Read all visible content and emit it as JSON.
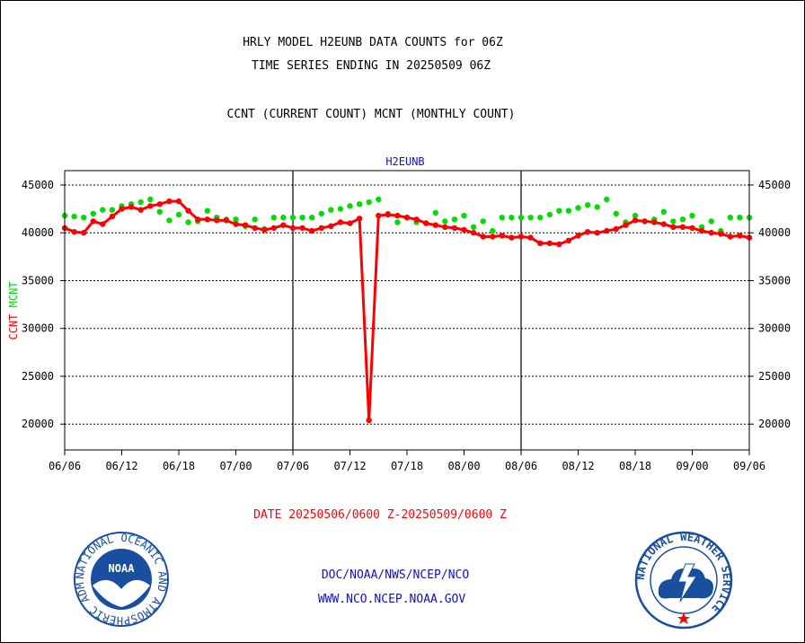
{
  "header": {
    "line1": "HRLY MODEL H2EUNB DATA COUNTS for 06Z",
    "line2": "TIME SERIES ENDING IN 20250509 06Z",
    "line3": "CCNT (CURRENT COUNT) MCNT (MONTHLY COUNT)"
  },
  "footer": {
    "date_range": "DATE 20250506/0600 Z-20250509/0600 Z",
    "org_path": "DOC/NOAA/NWS/NCEP/NCO",
    "website": "WWW.NCO.NCEP.NOAA.GOV"
  },
  "logos": {
    "noaa": {
      "label": "NOAA",
      "ring_text": "NATIONAL OCEANIC AND ATMOSPHERIC ADMINISTRATION · U.S. DEPARTMENT OF COMMERCE",
      "color": "#1a4fa0"
    },
    "nws": {
      "ring_text": "NATIONAL WEATHER SERVICE",
      "color": "#1a4fa0"
    }
  },
  "chart_data": {
    "type": "line",
    "title": "H2EUNB",
    "ylabel_parts": [
      {
        "text": "CCNT",
        "color": "#ff0000"
      },
      {
        "text": "MCNT",
        "color": "#00dd00"
      }
    ],
    "ylim": [
      17300,
      46500
    ],
    "yticks": [
      20000,
      25000,
      30000,
      35000,
      40000,
      45000
    ],
    "xlim": [
      0,
      72
    ],
    "x_tick_positions": [
      0,
      6,
      12,
      18,
      24,
      30,
      36,
      42,
      48,
      54,
      60,
      66,
      72
    ],
    "x_tick_labels": [
      "06/06",
      "06/12",
      "06/18",
      "07/00",
      "07/06",
      "07/12",
      "07/18",
      "08/00",
      "08/06",
      "08/12",
      "08/18",
      "09/00",
      "09/06"
    ],
    "day_separators": [
      24,
      48
    ],
    "grid": true,
    "series": [
      {
        "name": "CCNT",
        "color": "#ff0000",
        "x": [
          0,
          1,
          2,
          3,
          4,
          5,
          6,
          7,
          8,
          9,
          10,
          11,
          12,
          13,
          14,
          15,
          16,
          17,
          18,
          19,
          20,
          21,
          22,
          23,
          24,
          25,
          26,
          27,
          28,
          29,
          30,
          31,
          32,
          33,
          34,
          35,
          36,
          37,
          38,
          39,
          40,
          41,
          42,
          43,
          44,
          45,
          46,
          47,
          48,
          49,
          50,
          51,
          52,
          53,
          54,
          55,
          56,
          57,
          58,
          59,
          60,
          61,
          62,
          63,
          64,
          65,
          66,
          67,
          68,
          69,
          70,
          71,
          72
        ],
        "values": [
          40500,
          40100,
          40000,
          41200,
          40900,
          41700,
          42500,
          42700,
          42400,
          42800,
          43000,
          43300,
          43300,
          42300,
          41400,
          41400,
          41300,
          41300,
          40900,
          40800,
          40500,
          40300,
          40500,
          40800,
          40500,
          40500,
          40200,
          40500,
          40700,
          41100,
          41000,
          41500,
          20400,
          41800,
          41900,
          41800,
          41600,
          41400,
          41000,
          40800,
          40600,
          40500,
          40300,
          40000,
          39600,
          39600,
          39700,
          39500,
          39600,
          39500,
          38900,
          38900,
          38800,
          39200,
          39700,
          40100,
          40000,
          40200,
          40400,
          40800,
          41300,
          41200,
          41100,
          40900,
          40600,
          40600,
          40500,
          40200,
          40000,
          39900,
          39600,
          39700,
          39500
        ]
      },
      {
        "name": "MCNT",
        "color": "#00dd00",
        "x": [
          0,
          1,
          2,
          3,
          4,
          5,
          6,
          7,
          8,
          9,
          10,
          11,
          12,
          13,
          14,
          15,
          16,
          17,
          18,
          19,
          20,
          21,
          22,
          23,
          24,
          25,
          26,
          27,
          28,
          29,
          30,
          31,
          32,
          33,
          34,
          35,
          36,
          37,
          38,
          39,
          40,
          41,
          42,
          43,
          44,
          45,
          46,
          47,
          48,
          49,
          50,
          51,
          52,
          53,
          54,
          55,
          56,
          57,
          58,
          59,
          60,
          61,
          62,
          63,
          64,
          65,
          66,
          67,
          68,
          69,
          70,
          71,
          72
        ],
        "values": [
          41800,
          41700,
          41600,
          42000,
          42400,
          42400,
          42800,
          43000,
          43200,
          43500,
          42200,
          41300,
          41900,
          41100,
          41200,
          42300,
          41600,
          41400,
          41400,
          40700,
          41400,
          40400,
          41600,
          41600,
          41600,
          41600,
          41600,
          42000,
          42400,
          42500,
          42800,
          43000,
          43200,
          43500,
          42000,
          41100,
          41600,
          41100,
          41000,
          42100,
          41200,
          41400,
          41800,
          40600,
          41200,
          40200,
          41600,
          41600,
          41600,
          41600,
          41600,
          41900,
          42300,
          42300,
          42600,
          42900,
          42700,
          43500,
          42000,
          41100,
          41800,
          41200,
          41400,
          42200,
          41200,
          41400,
          41800,
          40600,
          41200,
          40200,
          41600,
          41600,
          41600
        ]
      }
    ]
  }
}
